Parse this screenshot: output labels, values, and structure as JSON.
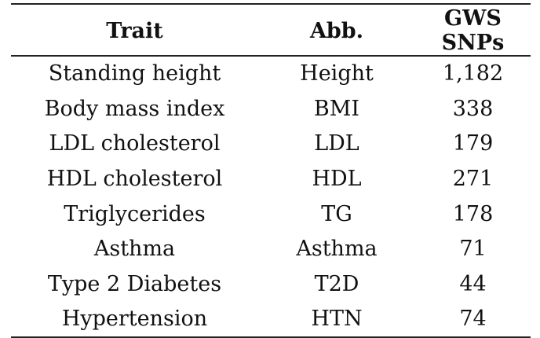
{
  "table": {
    "headers": {
      "trait": "Trait",
      "abb": "Abb.",
      "snps": "GWS SNPs"
    },
    "rows": [
      {
        "trait": "Standing height",
        "abb": "Height",
        "snps": "1,182"
      },
      {
        "trait": "Body mass index",
        "abb": "BMI",
        "snps": "338"
      },
      {
        "trait": "LDL cholesterol",
        "abb": "LDL",
        "snps": "179"
      },
      {
        "trait": "HDL cholesterol",
        "abb": "HDL",
        "snps": "271"
      },
      {
        "trait": "Triglycerides",
        "abb": "TG",
        "snps": "178"
      },
      {
        "trait": "Asthma",
        "abb": "Asthma",
        "snps": "71"
      },
      {
        "trait": "Type 2 Diabetes",
        "abb": "T2D",
        "snps": "44"
      },
      {
        "trait": "Hypertension",
        "abb": "HTN",
        "snps": "74"
      }
    ]
  }
}
